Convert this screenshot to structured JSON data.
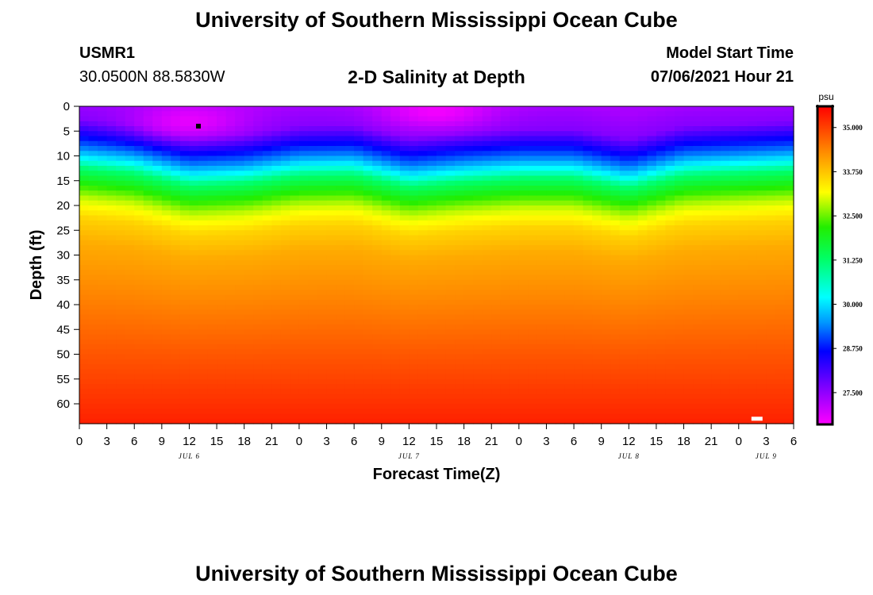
{
  "header": {
    "title_top": "University of Southern Mississippi Ocean Cube",
    "title_bottom": "University of Southern Mississippi Ocean Cube",
    "station_id": "USMR1",
    "coordinates": "30.0500N  88.5830W",
    "plot_title": "2-D Salinity at Depth",
    "model_start_label": "Model Start Time",
    "model_start_value": "07/06/2021 Hour 21"
  },
  "chart_data": {
    "type": "heatmap",
    "title": "2-D Salinity at Depth",
    "xlabel": "Forecast Time(Z)",
    "ylabel": "Depth (ft)",
    "x_ticks": [
      "0",
      "3",
      "6",
      "9",
      "12",
      "15",
      "18",
      "21",
      "0",
      "3",
      "6",
      "9",
      "12",
      "15",
      "18",
      "21",
      "0",
      "3",
      "6",
      "9",
      "12",
      "15",
      "18",
      "21",
      "0",
      "3",
      "6"
    ],
    "x_range_hours": [
      0,
      78
    ],
    "date_labels": [
      {
        "text": "JUL 6",
        "hour": 12
      },
      {
        "text": "JUL 7",
        "hour": 36
      },
      {
        "text": "JUL 8",
        "hour": 60
      },
      {
        "text": "JUL 9",
        "hour": 75
      }
    ],
    "y_ticks": [
      0,
      5,
      10,
      15,
      20,
      25,
      30,
      35,
      40,
      45,
      50,
      55,
      60
    ],
    "ylim": [
      0,
      64
    ],
    "y_inverted": true,
    "colorbar": {
      "unit": "psu",
      "ticks": [
        "35.000",
        "33.750",
        "32.500",
        "31.250",
        "30.000",
        "28.750",
        "27.500"
      ],
      "range": [
        26.6,
        35.6
      ]
    },
    "depth_profile": [
      {
        "depth": 0,
        "salinity": 27.3
      },
      {
        "depth": 5,
        "salinity": 27.6
      },
      {
        "depth": 9,
        "salinity": 28.8
      },
      {
        "depth": 11,
        "salinity": 29.4
      },
      {
        "depth": 13,
        "salinity": 30.2
      },
      {
        "depth": 15,
        "salinity": 31.2
      },
      {
        "depth": 18,
        "salinity": 32.1
      },
      {
        "depth": 21,
        "salinity": 32.9
      },
      {
        "depth": 25,
        "salinity": 33.6
      },
      {
        "depth": 30,
        "salinity": 34.0
      },
      {
        "depth": 40,
        "salinity": 34.4
      },
      {
        "depth": 50,
        "salinity": 34.8
      },
      {
        "depth": 64,
        "salinity": 35.3
      }
    ],
    "interface_shift_ft": [
      {
        "hour": 0,
        "shift": -2.5
      },
      {
        "hour": 6,
        "shift": -1.5
      },
      {
        "hour": 12,
        "shift": 1.0
      },
      {
        "hour": 18,
        "shift": 0.5
      },
      {
        "hour": 24,
        "shift": -1.0
      },
      {
        "hour": 30,
        "shift": -1.2
      },
      {
        "hour": 36,
        "shift": 1.2
      },
      {
        "hour": 42,
        "shift": 0.2
      },
      {
        "hour": 48,
        "shift": -0.5
      },
      {
        "hour": 54,
        "shift": -0.5
      },
      {
        "hour": 60,
        "shift": 1.5
      },
      {
        "hour": 66,
        "shift": -1.0
      },
      {
        "hour": 72,
        "shift": -1.5
      },
      {
        "hour": 78,
        "shift": -2.0
      }
    ],
    "surface_minima": [
      {
        "hour": 12,
        "depth": 3,
        "salinity": 26.8
      },
      {
        "hour": 39,
        "depth": 1,
        "salinity": 26.7
      }
    ],
    "markers": [
      {
        "hour": 13,
        "depth": 4,
        "color": "#000000"
      },
      {
        "hour": 74,
        "depth": 63,
        "color": "#ffffff"
      }
    ]
  }
}
